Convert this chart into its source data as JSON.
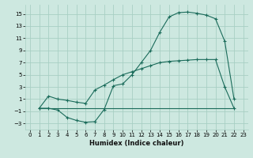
{
  "xlabel": "Humidex (Indice chaleur)",
  "xlim": [
    -0.5,
    23.5
  ],
  "ylim": [
    -4,
    16.5
  ],
  "xticks": [
    0,
    1,
    2,
    3,
    4,
    5,
    6,
    7,
    8,
    9,
    10,
    11,
    12,
    13,
    14,
    15,
    16,
    17,
    18,
    19,
    20,
    21,
    22,
    23
  ],
  "yticks": [
    -3,
    -1,
    1,
    3,
    5,
    7,
    9,
    11,
    13,
    15
  ],
  "background_color": "#cde8e0",
  "grid_color": "#a8cfc4",
  "line_color": "#1a6b5a",
  "line1_x": [
    1,
    2,
    3,
    4,
    5,
    6,
    7,
    8,
    9,
    10,
    11,
    12,
    13,
    14,
    15,
    16,
    17,
    18,
    19,
    20,
    21,
    22
  ],
  "line1_y": [
    -0.5,
    -0.5,
    -0.8,
    -2.0,
    -2.5,
    -2.8,
    -2.7,
    -0.7,
    3.2,
    3.5,
    5.0,
    7.0,
    9.0,
    12.0,
    14.5,
    15.2,
    15.3,
    15.1,
    14.8,
    14.2,
    10.5,
    1.0
  ],
  "line2_x": [
    1,
    2,
    3,
    4,
    5,
    6,
    7,
    8,
    9,
    10,
    11,
    12,
    13,
    14,
    15,
    16,
    17,
    18,
    19,
    20,
    21,
    22
  ],
  "line2_y": [
    -0.5,
    1.5,
    1.0,
    0.8,
    0.5,
    0.3,
    2.5,
    3.3,
    4.2,
    5.0,
    5.5,
    6.0,
    6.5,
    7.0,
    7.2,
    7.3,
    7.4,
    7.5,
    7.5,
    7.5,
    3.0,
    -0.5
  ],
  "line3_x": [
    1,
    2,
    3,
    4,
    5,
    6,
    7,
    8,
    9,
    10,
    11,
    12,
    13,
    14,
    15,
    16,
    17,
    18,
    19,
    20,
    21,
    22
  ],
  "line3_y": [
    -0.5,
    -0.5,
    -0.5,
    -0.5,
    -0.5,
    -0.5,
    -0.5,
    -0.5,
    -0.5,
    -0.5,
    -0.5,
    -0.5,
    -0.5,
    -0.5,
    -0.5,
    -0.5,
    -0.5,
    -0.5,
    -0.5,
    -0.5,
    -0.5,
    -0.5
  ],
  "marker_size": 3,
  "line_width": 0.8,
  "tick_fontsize": 5,
  "xlabel_fontsize": 6,
  "xlabel_fontweight": "bold"
}
